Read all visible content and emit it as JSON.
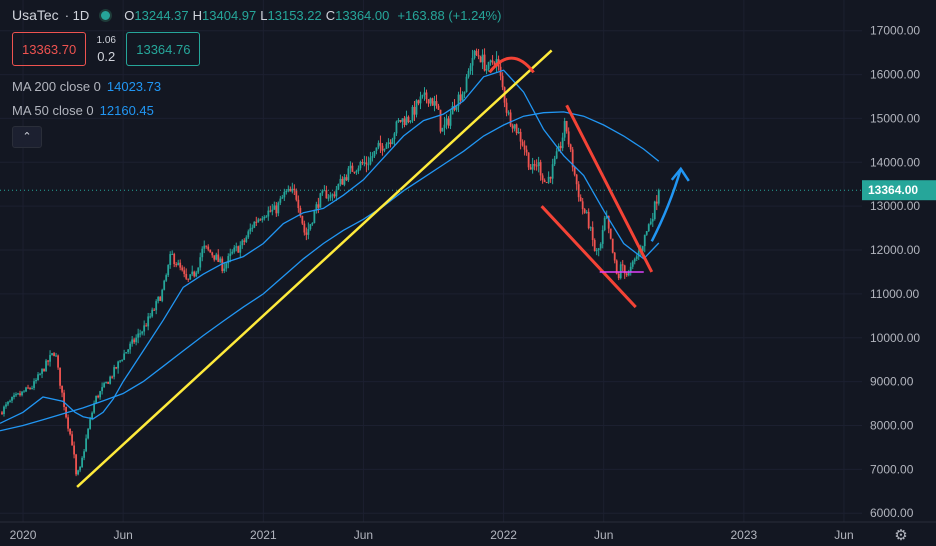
{
  "header": {
    "symbol": "UsaTec",
    "separator": "·",
    "timeframe": "1D",
    "open_key": "O",
    "open": "13244.37",
    "high_key": "H",
    "high": "13404.97",
    "low_key": "L",
    "low": "13153.22",
    "close_key": "C",
    "close": "13364.00",
    "change": "+163.88 (+1.24%)"
  },
  "trade": {
    "sell": "13363.70",
    "spread_top": "1.06",
    "spread_bottom": "0.2",
    "buy": "13364.76"
  },
  "indicators": [
    {
      "label": "MA 200 close 0",
      "value": "14023.73"
    },
    {
      "label": "MA 50 close 0",
      "value": "12160.45"
    }
  ],
  "collapse_icon": "chevron-up-icon",
  "colors": {
    "background": "#131722",
    "up": "#26a69a",
    "down": "#ef5350",
    "ma": "#2196f3",
    "trendline": "#ffeb3b",
    "pattern": "#f44336",
    "arrow": "#2196f3",
    "text": "#b2b5be",
    "grid": "#1c2030"
  },
  "chart_data": {
    "type": "candlestick",
    "interval": "1D",
    "last_price": 13364.0,
    "last_price_label": "13364.00",
    "ylim": [
      5800,
      17700
    ],
    "y_ticks": [
      6000,
      7000,
      8000,
      9000,
      10000,
      11000,
      12000,
      13000,
      14000,
      15000,
      16000,
      17000
    ],
    "y_tick_labels": [
      "6000.00",
      "7000.00",
      "8000.00",
      "9000.00",
      "10000.00",
      "11000.00",
      "12000.00",
      "13000.00",
      "14000.00",
      "15000.00",
      "16000.00",
      "17000.00"
    ],
    "x_ticks": [
      {
        "label": "2020",
        "t": 0
      },
      {
        "label": "Jun",
        "t": 5
      },
      {
        "label": "2021",
        "t": 12
      },
      {
        "label": "Jun",
        "t": 17
      },
      {
        "label": "2022",
        "t": 24
      },
      {
        "label": "Jun",
        "t": 29
      },
      {
        "label": "2023",
        "t": 36
      },
      {
        "label": "Jun",
        "t": 41
      }
    ],
    "xlim": [
      -1.15,
      41.9
    ],
    "price_path": [
      [
        -1.15,
        8300
      ],
      [
        -0.5,
        8600
      ],
      [
        0.5,
        8900
      ],
      [
        1.3,
        9500
      ],
      [
        1.6,
        9700
      ],
      [
        1.8,
        9100
      ],
      [
        2.2,
        8100
      ],
      [
        2.5,
        7500
      ],
      [
        2.65,
        6850
      ],
      [
        2.85,
        7000
      ],
      [
        3.2,
        7800
      ],
      [
        3.6,
        8600
      ],
      [
        4,
        8850
      ],
      [
        4.5,
        9200
      ],
      [
        5,
        9600
      ],
      [
        5.5,
        9900
      ],
      [
        6,
        10200
      ],
      [
        6.5,
        10600
      ],
      [
        7,
        11100
      ],
      [
        7.4,
        11900
      ],
      [
        7.8,
        11600
      ],
      [
        8.2,
        11250
      ],
      [
        8.6,
        11500
      ],
      [
        9,
        12050
      ],
      [
        9.5,
        11900
      ],
      [
        10,
        11600
      ],
      [
        10.5,
        11950
      ],
      [
        11,
        12150
      ],
      [
        11.5,
        12600
      ],
      [
        12,
        12850
      ],
      [
        12.6,
        12900
      ],
      [
        13.1,
        13300
      ],
      [
        13.6,
        13300
      ],
      [
        13.8,
        13000
      ],
      [
        14.1,
        12300
      ],
      [
        14.5,
        12800
      ],
      [
        14.8,
        13150
      ],
      [
        15.1,
        13300
      ],
      [
        15.4,
        13200
      ],
      [
        15.8,
        13500
      ],
      [
        16.3,
        13800
      ],
      [
        16.8,
        13950
      ],
      [
        17.2,
        14000
      ],
      [
        17.8,
        14350
      ],
      [
        18.3,
        14500
      ],
      [
        18.8,
        14950
      ],
      [
        19.3,
        15000
      ],
      [
        19.8,
        15400
      ],
      [
        20.3,
        15500
      ],
      [
        20.7,
        15200
      ],
      [
        20.9,
        14700
      ],
      [
        21.2,
        14900
      ],
      [
        21.6,
        15400
      ],
      [
        22.1,
        15700
      ],
      [
        22.4,
        16400
      ],
      [
        22.8,
        16450
      ],
      [
        23.2,
        16100
      ],
      [
        23.6,
        16400
      ],
      [
        23.9,
        15800
      ],
      [
        24.2,
        15100
      ],
      [
        24.6,
        14800
      ],
      [
        25,
        14400
      ],
      [
        25.4,
        13800
      ],
      [
        25.7,
        14000
      ],
      [
        26.1,
        13500
      ],
      [
        26.4,
        13800
      ],
      [
        26.8,
        14300
      ],
      [
        27.1,
        14900
      ],
      [
        27.3,
        14300
      ],
      [
        27.6,
        13600
      ],
      [
        27.9,
        13000
      ],
      [
        28.2,
        12700
      ],
      [
        28.4,
        12300
      ],
      [
        28.6,
        11900
      ],
      [
        28.85,
        12100
      ],
      [
        29.1,
        12800
      ],
      [
        29.3,
        12300
      ],
      [
        29.5,
        11800
      ],
      [
        29.7,
        11300
      ],
      [
        29.9,
        11700
      ],
      [
        30.2,
        11400
      ],
      [
        30.5,
        11700
      ],
      [
        30.9,
        12100
      ],
      [
        31.2,
        12500
      ],
      [
        31.5,
        12900
      ],
      [
        31.75,
        13364
      ]
    ],
    "ma50_path": [
      [
        -1.15,
        8050
      ],
      [
        0,
        8300
      ],
      [
        1,
        8650
      ],
      [
        2,
        8550
      ],
      [
        2.6,
        8300
      ],
      [
        3,
        8200
      ],
      [
        3.5,
        8150
      ],
      [
        4,
        8300
      ],
      [
        4.5,
        8600
      ],
      [
        5,
        9000
      ],
      [
        6,
        9700
      ],
      [
        7,
        10400
      ],
      [
        8,
        11150
      ],
      [
        9,
        11450
      ],
      [
        10,
        11700
      ],
      [
        11,
        11850
      ],
      [
        12,
        12150
      ],
      [
        13,
        12600
      ],
      [
        14,
        12850
      ],
      [
        15,
        12950
      ],
      [
        16,
        13250
      ],
      [
        17,
        13600
      ],
      [
        18,
        14100
      ],
      [
        19,
        14600
      ],
      [
        20,
        14950
      ],
      [
        21,
        15100
      ],
      [
        22,
        15400
      ],
      [
        23,
        15950
      ],
      [
        24,
        16100
      ],
      [
        25,
        15600
      ],
      [
        26,
        14750
      ],
      [
        27,
        14150
      ],
      [
        28,
        13700
      ],
      [
        29,
        12900
      ],
      [
        30,
        12150
      ],
      [
        31,
        11800
      ],
      [
        31.75,
        12160
      ]
    ],
    "ma200_path": [
      [
        -1.15,
        7880
      ],
      [
        0,
        8000
      ],
      [
        1,
        8130
      ],
      [
        2,
        8270
      ],
      [
        3,
        8400
      ],
      [
        4,
        8560
      ],
      [
        5,
        8730
      ],
      [
        6,
        9000
      ],
      [
        7,
        9350
      ],
      [
        8,
        9700
      ],
      [
        9,
        10050
      ],
      [
        10,
        10380
      ],
      [
        11,
        10700
      ],
      [
        12,
        11000
      ],
      [
        13,
        11400
      ],
      [
        14,
        11800
      ],
      [
        15,
        12150
      ],
      [
        16,
        12450
      ],
      [
        17,
        12700
      ],
      [
        18,
        13000
      ],
      [
        19,
        13350
      ],
      [
        20,
        13650
      ],
      [
        21,
        13950
      ],
      [
        22,
        14250
      ],
      [
        23,
        14600
      ],
      [
        24,
        14850
      ],
      [
        25,
        15050
      ],
      [
        26,
        15130
      ],
      [
        27,
        15150
      ],
      [
        28,
        15050
      ],
      [
        29,
        14850
      ],
      [
        30,
        14600
      ],
      [
        31,
        14300
      ],
      [
        31.75,
        14023.73
      ]
    ],
    "annotations": {
      "trendline": [
        [
          2.7,
          6600
        ],
        [
          26.4,
          16550
        ]
      ],
      "top_arc": [
        [
          23.3,
          16050
        ],
        [
          24.4,
          16700
        ],
        [
          25.5,
          16050
        ]
      ],
      "wedge_upper": [
        [
          27.15,
          15300
        ],
        [
          31.4,
          11500
        ]
      ],
      "wedge_lower": [
        [
          25.9,
          13000
        ],
        [
          30.6,
          10700
        ]
      ],
      "support_line": [
        [
          28.8,
          11500
        ],
        [
          31,
          11500
        ]
      ],
      "arrow": [
        [
          31.4,
          12200
        ],
        [
          32.3,
          13000
        ],
        [
          32.85,
          13850
        ]
      ]
    }
  }
}
